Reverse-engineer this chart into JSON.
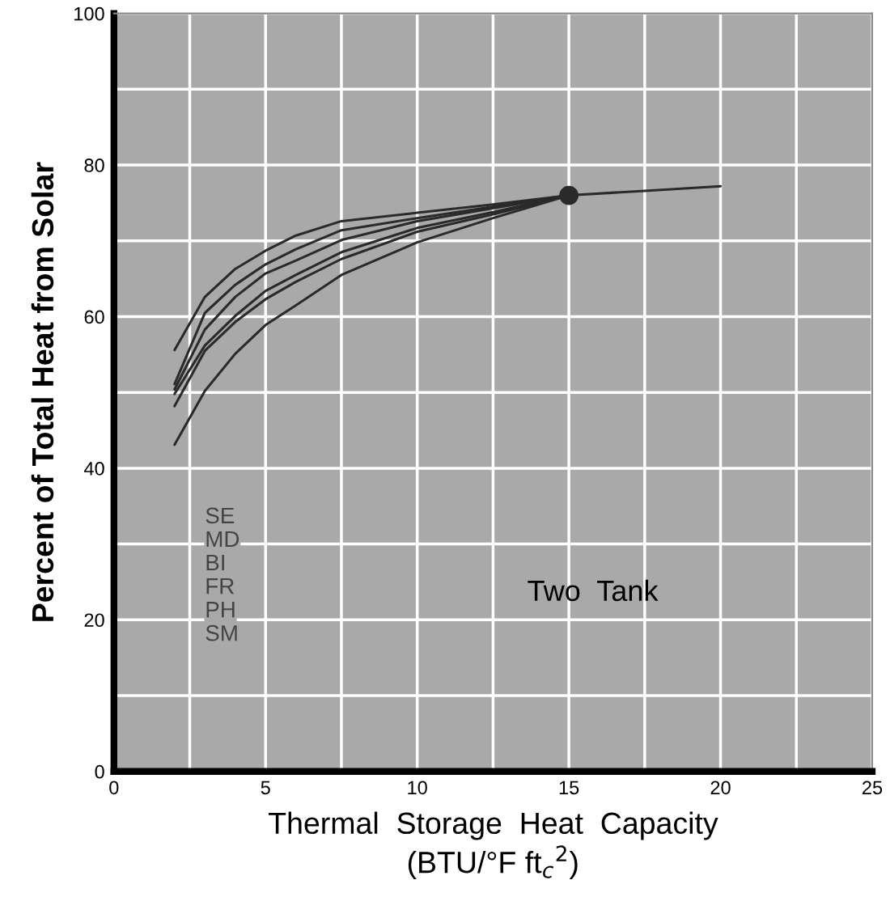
{
  "chart_data": {
    "type": "line",
    "xlabel": "Thermal  Storage  Heat  Capacity\n(BTU/°F ft$_{c}$$^{2}$)",
    "ylabel": "Percent of Total Heat from Solar",
    "series": [
      {
        "color": "#2a2a2a",
        "x": [
          2,
          3,
          4,
          5,
          6,
          7.5,
          10,
          12.5,
          15,
          17.5,
          20
        ],
        "values": [
          55.6,
          62.6,
          66.3,
          68.7,
          70.7,
          72.6,
          73.7,
          74.8,
          76,
          76.6,
          77.2
        ]
      },
      {
        "color": "#2a2a2a",
        "x": [
          2,
          3,
          4,
          5,
          6,
          7.5,
          10,
          12.5,
          15
        ],
        "values": [
          51.1,
          60.5,
          64.2,
          66.9,
          68.9,
          71.4,
          73,
          74.5,
          76
        ]
      },
      {
        "color": "#2a2a2a",
        "x": [
          2,
          3,
          4,
          5,
          6,
          7.5,
          10,
          12.5,
          15
        ],
        "values": [
          50.4,
          58.3,
          62.6,
          65.7,
          67.4,
          70.1,
          72.6,
          74.3,
          76
        ]
      },
      {
        "color": "#2a2a2a",
        "x": [
          2,
          3,
          4,
          5,
          6,
          7.5,
          10,
          12.5,
          15
        ],
        "values": [
          49.8,
          56.2,
          60.1,
          63.4,
          65.5,
          68.5,
          71.7,
          73.8,
          76
        ]
      },
      {
        "color": "#2a2a2a",
        "x": [
          2,
          3,
          4,
          5,
          6,
          7.5,
          10,
          12.5,
          15
        ],
        "values": [
          48.2,
          55.5,
          59.3,
          62.3,
          64.6,
          67.6,
          71.2,
          73.5,
          76
        ]
      },
      {
        "color": "#2a2a2a",
        "x": [
          2,
          3,
          4,
          5,
          6,
          7.5,
          10,
          12.5,
          15
        ],
        "values": [
          43.1,
          50.2,
          55.1,
          58.9,
          61.5,
          65.5,
          69.8,
          73,
          76
        ]
      },
      {
        "type": "scatter",
        "color": "#2a2a2a",
        "x": [
          15
        ],
        "values": [
          76
        ]
      }
    ],
    "xlim": [
      0,
      25
    ],
    "xticks": [
      0,
      {
        "value": 2.5,
        "label": null
      },
      5,
      {
        "value": 7.5,
        "label": null
      },
      10,
      {
        "value": 12.5,
        "label": null
      },
      15,
      {
        "value": 17.5,
        "label": null
      },
      20,
      {
        "value": 22.5,
        "label": null
      },
      25
    ],
    "ylim": [
      0,
      100
    ],
    "yticks": [
      0,
      {
        "value": 10,
        "label": null
      },
      20,
      {
        "value": 30,
        "label": null
      },
      40,
      {
        "value": 50,
        "label": null
      },
      60,
      {
        "value": 70,
        "label": null
      },
      80,
      {
        "value": 90,
        "label": null
      },
      100
    ],
    "grid": true,
    "annotations": [
      "SE",
      "MD",
      "BI",
      "FR",
      "PH",
      "SM",
      "Two  Tank"
    ]
  }
}
